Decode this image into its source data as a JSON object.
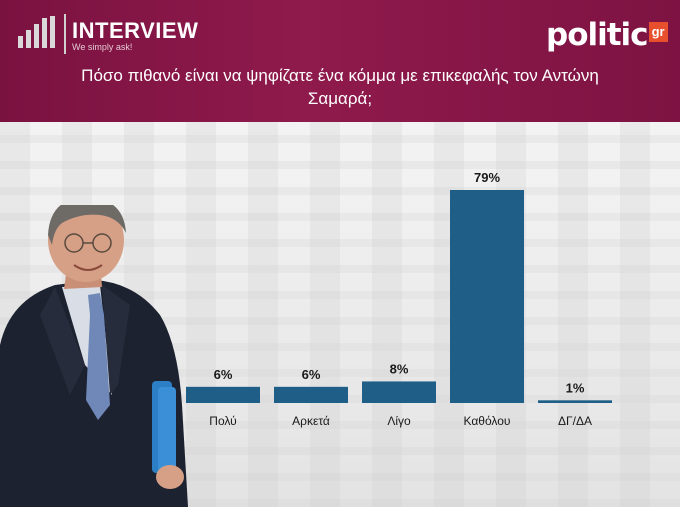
{
  "header": {
    "brand": "INTERVIEW",
    "tagline": "We simply ask!",
    "partner_logo_word": "politic",
    "partner_logo_suffix": "gr",
    "question": "Πόσο πιθανό είναι να ψηφίζατε ένα κόμμα με επικεφαλής τον Αντώνη Σαμαρά;"
  },
  "colors": {
    "header": "#8a174a",
    "bar": "#1f5f87",
    "accent": "#e8502d"
  },
  "chart_data": {
    "type": "bar",
    "categories": [
      "Πολύ",
      "Αρκετά",
      "Λίγο",
      "Καθόλου",
      "ΔΓ/ΔΑ"
    ],
    "values": [
      6,
      6,
      8,
      79,
      1
    ],
    "value_labels": [
      "6%",
      "6%",
      "8%",
      "79%",
      "1%"
    ],
    "ylim": [
      0,
      79
    ],
    "grid": false
  }
}
